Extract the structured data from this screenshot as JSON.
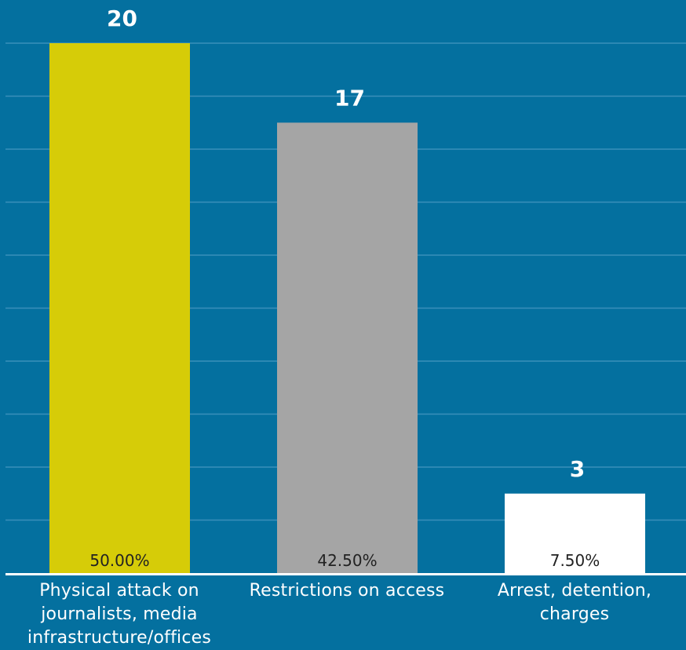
{
  "chart_data": {
    "type": "bar",
    "categories": [
      "Physical attack on journalists, media infrastructure/offices",
      "Restrictions on access",
      "Arrest, detention, charges"
    ],
    "category_lines": [
      [
        "Physical attack on",
        "journalists, media",
        "infrastructure/offices"
      ],
      [
        "Restrictions on access"
      ],
      [
        "Arrest, detention,",
        "charges"
      ]
    ],
    "values": [
      20,
      17,
      3
    ],
    "percent_labels": [
      "50.00%",
      "42.50%",
      "7.50%"
    ],
    "colors": [
      "#d6cc08",
      "#a5a5a5",
      "#ffffff"
    ],
    "ylim": [
      0,
      20
    ],
    "grid": true,
    "legend": "none",
    "title": "",
    "xlabel": "",
    "ylabel": ""
  },
  "style": {
    "background": "#04709f",
    "gridline_color": "#3a8fba",
    "baseline_color": "#ffffff",
    "value_label_color": "#ffffff",
    "percent_label_color": "#222222"
  }
}
